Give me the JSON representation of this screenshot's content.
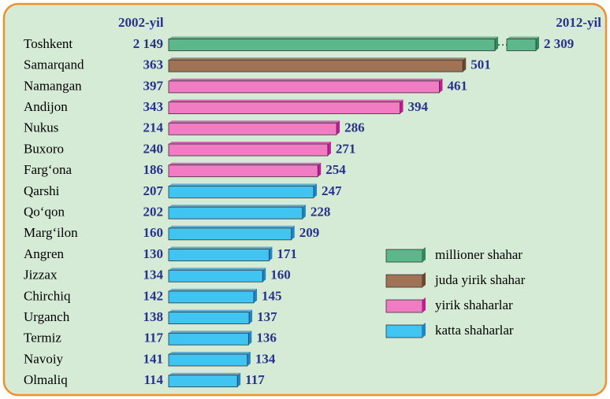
{
  "chart_data": {
    "type": "bar",
    "categories": [
      "Toshkent",
      "Samarqand",
      "Namangan",
      "Andijon",
      "Nukus",
      "Buxoro",
      "Farg‘ona",
      "Qarshi",
      "Qo‘qon",
      "Marg‘ilon",
      "Angren",
      "Jizzax",
      "Chirchiq",
      "Urganch",
      "Termiz",
      "Navoiy",
      "Olmaliq"
    ],
    "series": [
      {
        "name": "2002-yil",
        "values": [
          2149,
          363,
          397,
          343,
          214,
          240,
          186,
          207,
          202,
          160,
          130,
          134,
          142,
          138,
          117,
          141,
          114
        ],
        "value_labels": [
          "2 149",
          "363",
          "397",
          "343",
          "214",
          "240",
          "186",
          "207",
          "202",
          "160",
          "130",
          "134",
          "142",
          "138",
          "117",
          "141",
          "114"
        ]
      },
      {
        "name": "2012-yil",
        "values": [
          2309,
          501,
          461,
          394,
          286,
          271,
          254,
          247,
          228,
          209,
          171,
          160,
          145,
          137,
          136,
          134,
          117
        ],
        "value_labels": [
          "2 309",
          "501",
          "461",
          "394",
          "286",
          "271",
          "254",
          "247",
          "228",
          "209",
          "171",
          "160",
          "145",
          "137",
          "136",
          "134",
          "117"
        ]
      }
    ],
    "groups": [
      {
        "name": "millioner shahar",
        "color": "#5cb88a",
        "side": "#2e8a5c"
      },
      {
        "name": "juda yirik shahar",
        "color": "#a07256",
        "side": "#6e4630"
      },
      {
        "name": "yirik shaharlar",
        "color": "#f27cc4",
        "side": "#c8189a"
      },
      {
        "name": "katta shaharlar",
        "color": "#40c4f2",
        "side": "#1a86cc"
      }
    ],
    "category_groups": [
      0,
      1,
      2,
      2,
      2,
      2,
      2,
      3,
      3,
      3,
      3,
      3,
      3,
      3,
      3,
      3,
      3
    ]
  }
}
